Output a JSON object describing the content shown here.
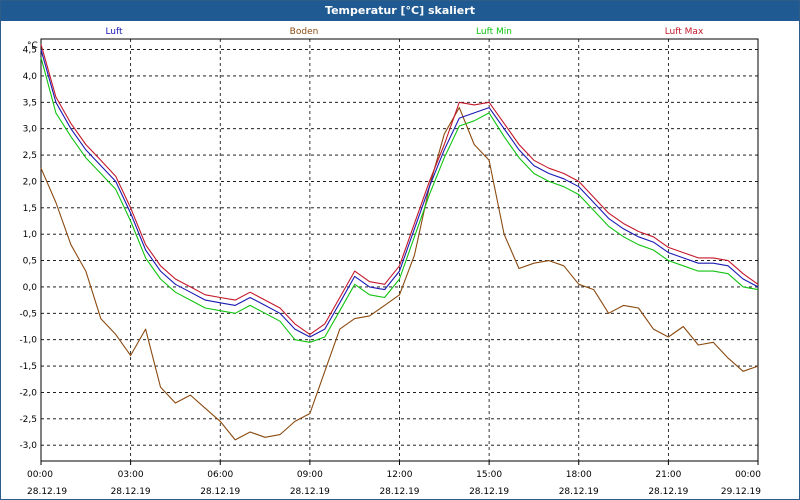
{
  "window": {
    "title": "Temperatur [°C] skaliert"
  },
  "chart_data": {
    "type": "line",
    "title": "Temperatur [°C] skaliert",
    "ylabel": "°C",
    "ylim": [
      -3.3,
      4.7
    ],
    "yticks": [
      4.5,
      4.0,
      3.5,
      3.0,
      2.5,
      2.0,
      1.5,
      1.0,
      0.5,
      0.0,
      -0.5,
      -1.0,
      -1.5,
      -2.0,
      -2.5,
      -3.0
    ],
    "ytick_labels": [
      "4,5",
      "4,0",
      "3,5",
      "3,0",
      "2,5",
      "2,0",
      "1,5",
      "1,0",
      "0,5",
      "0,0",
      "-0,5",
      "-1,0",
      "-1,5",
      "-2,0",
      "-2,5",
      "-3,0"
    ],
    "xlim": [
      0,
      24
    ],
    "xticks": [
      0,
      3,
      6,
      9,
      12,
      15,
      18,
      21,
      24
    ],
    "xtick_labels": [
      "00:00",
      "03:00",
      "06:00",
      "09:00",
      "12:00",
      "15:00",
      "18:00",
      "21:00",
      "00:00"
    ],
    "xtick_dates": [
      "28.12.19",
      "28.12.19",
      "28.12.19",
      "28.12.19",
      "28.12.19",
      "28.12.19",
      "28.12.19",
      "28.12.19",
      "29.12.19"
    ],
    "grid": true,
    "legend_position": "top",
    "colors": {
      "luft": "#1a1ab4",
      "boden": "#8b4a10",
      "luft_min": "#11c411",
      "luft_max": "#c4182a"
    },
    "x": [
      0,
      0.5,
      1,
      1.5,
      2,
      2.5,
      3,
      3.5,
      4,
      4.5,
      5,
      5.5,
      6,
      6.5,
      7,
      7.5,
      8,
      8.5,
      9,
      9.5,
      10,
      10.5,
      11,
      11.5,
      12,
      12.5,
      13,
      13.5,
      14,
      14.5,
      15,
      15.5,
      16,
      16.5,
      17,
      17.5,
      18,
      18.5,
      19,
      19.5,
      20,
      20.5,
      21,
      21.5,
      22,
      22.5,
      23,
      23.5,
      24
    ],
    "series": [
      {
        "name": "Luft",
        "key": "luft",
        "values": [
          4.5,
          3.5,
          3.0,
          2.6,
          2.3,
          2.0,
          1.4,
          0.7,
          0.3,
          0.05,
          -0.1,
          -0.25,
          -0.3,
          -0.35,
          -0.2,
          -0.35,
          -0.5,
          -0.8,
          -0.95,
          -0.8,
          -0.3,
          0.2,
          0.0,
          -0.05,
          0.3,
          1.1,
          1.9,
          2.6,
          3.2,
          3.3,
          3.4,
          3.0,
          2.6,
          2.3,
          2.15,
          2.05,
          1.9,
          1.6,
          1.3,
          1.1,
          0.95,
          0.85,
          0.65,
          0.55,
          0.45,
          0.45,
          0.4,
          0.15,
          0.0
        ]
      },
      {
        "name": "Boden",
        "key": "boden",
        "values": [
          2.25,
          1.6,
          0.8,
          0.3,
          -0.6,
          -0.9,
          -1.3,
          -0.8,
          -1.9,
          -2.2,
          -2.05,
          -2.3,
          -2.55,
          -2.9,
          -2.75,
          -2.85,
          -2.8,
          -2.55,
          -2.4,
          -1.6,
          -0.8,
          -0.6,
          -0.55,
          -0.35,
          -0.15,
          0.6,
          1.9,
          2.9,
          3.4,
          2.7,
          2.4,
          1.0,
          0.35,
          0.45,
          0.5,
          0.4,
          0.05,
          -0.05,
          -0.5,
          -0.35,
          -0.4,
          -0.8,
          -0.95,
          -0.75,
          -1.1,
          -1.05,
          -1.35,
          -1.6,
          -1.5
        ]
      },
      {
        "name": "Luft Min",
        "key": "luft_min",
        "values": [
          4.35,
          3.3,
          2.85,
          2.45,
          2.15,
          1.85,
          1.25,
          0.55,
          0.15,
          -0.1,
          -0.25,
          -0.4,
          -0.45,
          -0.5,
          -0.35,
          -0.5,
          -0.65,
          -1.0,
          -1.05,
          -0.95,
          -0.45,
          0.05,
          -0.15,
          -0.2,
          0.15,
          0.95,
          1.75,
          2.45,
          3.05,
          3.15,
          3.3,
          2.85,
          2.45,
          2.15,
          2.0,
          1.9,
          1.75,
          1.45,
          1.15,
          0.95,
          0.8,
          0.7,
          0.5,
          0.4,
          0.3,
          0.3,
          0.25,
          0.0,
          -0.05
        ]
      },
      {
        "name": "Luft Max",
        "key": "luft_max",
        "values": [
          4.6,
          3.6,
          3.1,
          2.7,
          2.4,
          2.1,
          1.5,
          0.8,
          0.4,
          0.15,
          0.0,
          -0.15,
          -0.2,
          -0.25,
          -0.1,
          -0.25,
          -0.4,
          -0.7,
          -0.9,
          -0.7,
          -0.2,
          0.3,
          0.1,
          0.05,
          0.4,
          1.2,
          2.0,
          2.7,
          3.5,
          3.45,
          3.5,
          3.1,
          2.7,
          2.4,
          2.25,
          2.15,
          2.0,
          1.7,
          1.4,
          1.2,
          1.05,
          0.95,
          0.75,
          0.65,
          0.55,
          0.55,
          0.5,
          0.25,
          0.05
        ]
      }
    ]
  }
}
